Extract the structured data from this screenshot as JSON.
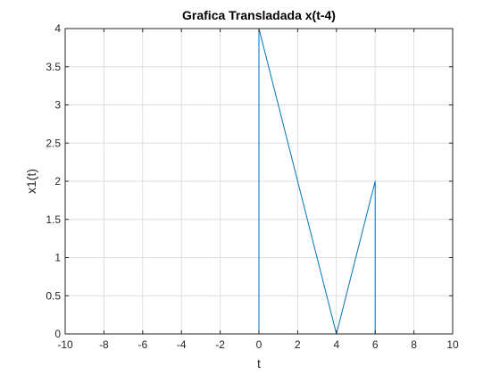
{
  "chart_data": {
    "type": "line",
    "title": "Grafica Transladada x(t-4)",
    "xlabel": "t",
    "ylabel": "x1(t)",
    "xlim": [
      -10,
      10
    ],
    "ylim": [
      0,
      4
    ],
    "grid": true,
    "x_ticks": [
      -10,
      -8,
      -6,
      -4,
      -2,
      0,
      2,
      4,
      6,
      8,
      10
    ],
    "y_ticks": [
      0,
      0.5,
      1,
      1.5,
      2,
      2.5,
      3,
      3.5,
      4
    ],
    "series": [
      {
        "color": "#0072BD",
        "x": [
          -10,
          0,
          0,
          4,
          6,
          6,
          10
        ],
        "y": [
          0,
          0,
          4,
          0,
          2,
          0,
          0
        ]
      }
    ]
  },
  "style": {
    "line_color": "#0072BD",
    "grid_color": "#dedede",
    "axis_color": "#262626"
  }
}
